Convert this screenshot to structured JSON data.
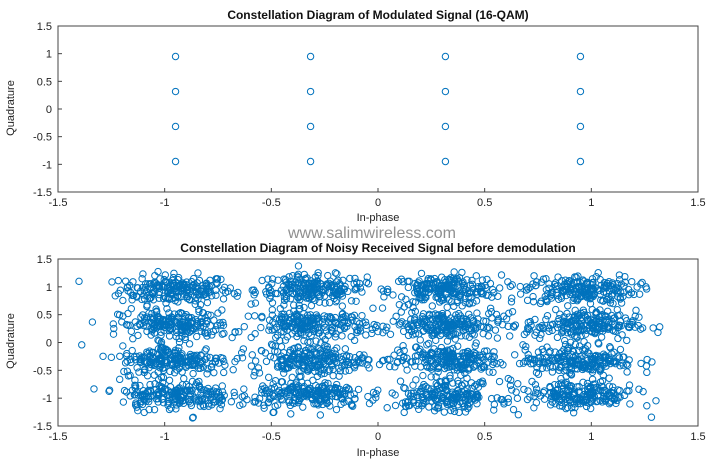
{
  "watermark": "www.salimwireless.com",
  "chart_data": [
    {
      "type": "scatter",
      "title": "Constellation Diagram of Modulated Signal (16-QAM)",
      "xlabel": "In-phase",
      "ylabel": "Quadrature",
      "xlim": [
        -1.5,
        1.5
      ],
      "ylim": [
        -1.5,
        1.5
      ],
      "xticks": [
        -1.5,
        -1,
        -0.5,
        0,
        0.5,
        1,
        1.5
      ],
      "yticks": [
        -1.5,
        -1,
        -0.5,
        0,
        0.5,
        1,
        1.5
      ],
      "grid": true,
      "marker": "circle",
      "color": "#0072BD",
      "points": [
        [
          -0.949,
          0.949
        ],
        [
          -0.316,
          0.949
        ],
        [
          0.316,
          0.949
        ],
        [
          0.949,
          0.949
        ],
        [
          -0.949,
          0.316
        ],
        [
          -0.316,
          0.316
        ],
        [
          0.316,
          0.316
        ],
        [
          0.949,
          0.316
        ],
        [
          -0.949,
          -0.316
        ],
        [
          -0.316,
          -0.316
        ],
        [
          0.316,
          -0.316
        ],
        [
          0.949,
          -0.316
        ],
        [
          -0.949,
          -0.949
        ],
        [
          -0.316,
          -0.949
        ],
        [
          0.316,
          -0.949
        ],
        [
          0.949,
          -0.949
        ]
      ]
    },
    {
      "type": "scatter",
      "title": "Constellation Diagram of Noisy Received Signal before demodulation",
      "xlabel": "In-phase",
      "ylabel": "Quadrature",
      "xlim": [
        -1.5,
        1.5
      ],
      "ylim": [
        -1.5,
        1.5
      ],
      "xticks": [
        -1.5,
        -1,
        -0.5,
        0,
        0.5,
        1,
        1.5
      ],
      "yticks": [
        -1.5,
        -1,
        -0.5,
        0,
        0.5,
        1,
        1.5
      ],
      "grid": true,
      "marker": "circle",
      "color": "#0072BD",
      "cluster_centers": [
        [
          -0.949,
          0.949
        ],
        [
          -0.316,
          0.949
        ],
        [
          0.316,
          0.949
        ],
        [
          0.949,
          0.949
        ],
        [
          -0.949,
          0.316
        ],
        [
          -0.316,
          0.316
        ],
        [
          0.316,
          0.316
        ],
        [
          0.949,
          0.316
        ],
        [
          -0.949,
          -0.316
        ],
        [
          -0.316,
          -0.316
        ],
        [
          0.316,
          -0.316
        ],
        [
          0.949,
          -0.316
        ],
        [
          -0.949,
          -0.949
        ],
        [
          -0.316,
          -0.949
        ],
        [
          0.316,
          -0.949
        ],
        [
          0.949,
          -0.949
        ]
      ],
      "noise_std": 0.13,
      "points_per_cluster": 210
    }
  ]
}
